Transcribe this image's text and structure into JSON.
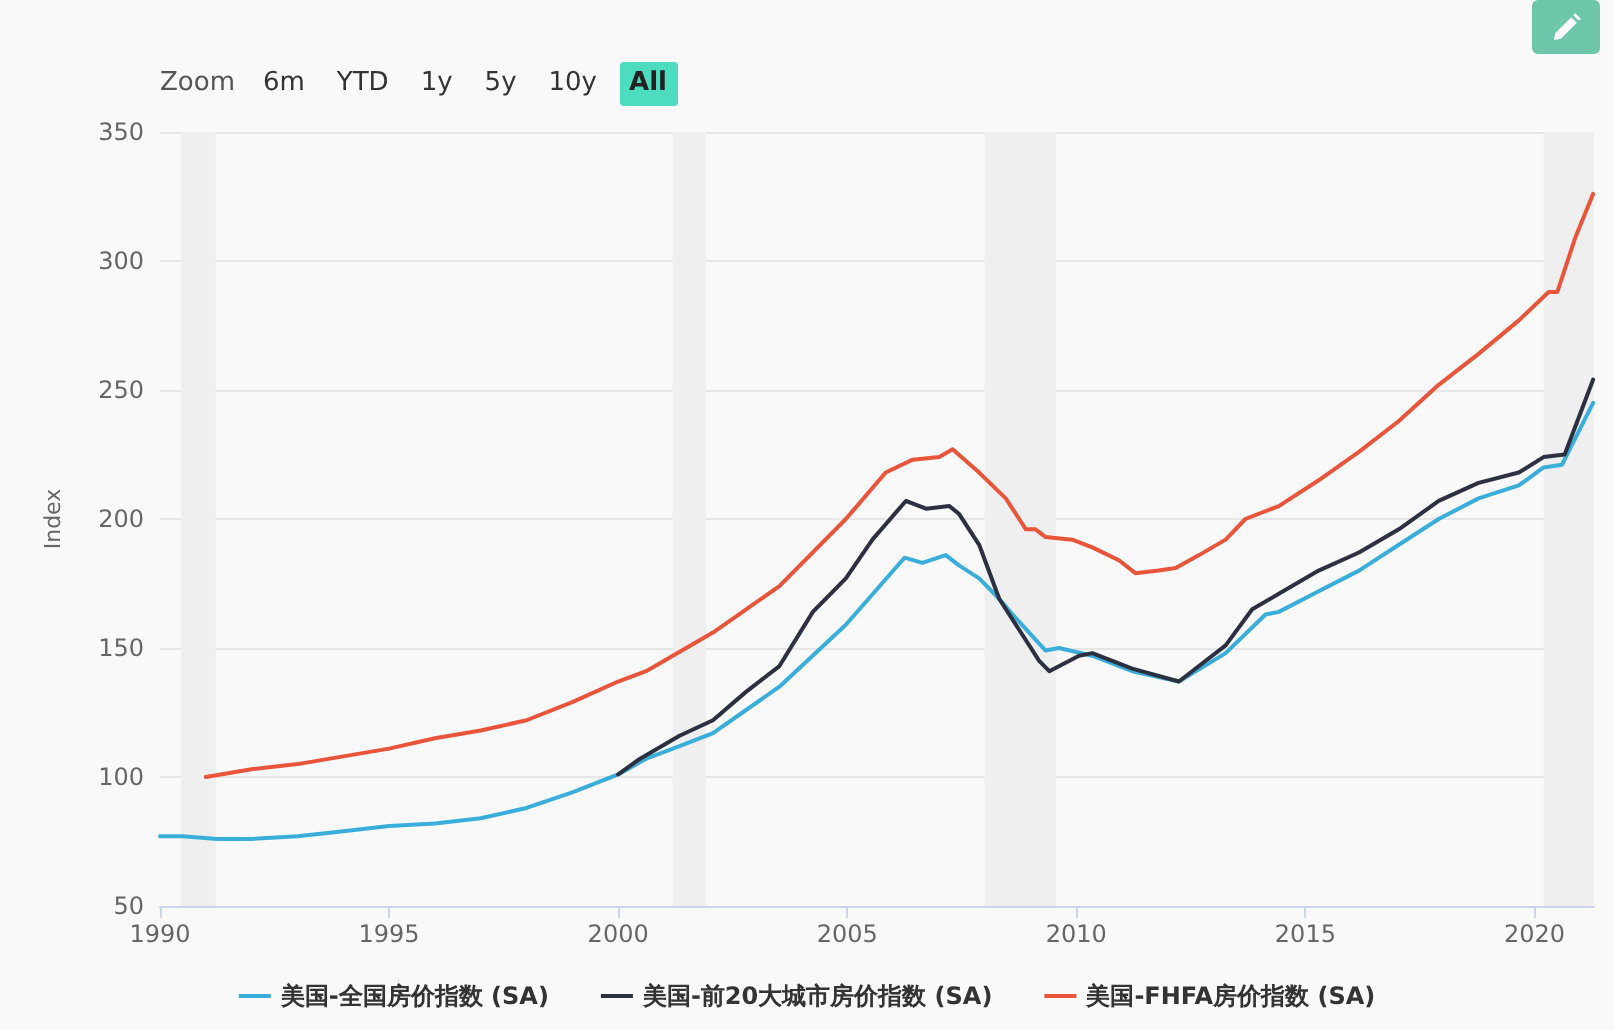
{
  "chart_data": {
    "type": "line",
    "ylabel": "Index",
    "annotations": [
      "Zoom",
      "6m",
      "YTD",
      "1y",
      "5y",
      "10y",
      "All"
    ],
    "series": [
      {
        "name": "美国-全国房价指数 (SA)",
        "color": "#3aaedb",
        "x": [
          1990,
          1990.5,
          1991.25,
          1992,
          1993,
          1994,
          1995,
          1996,
          1997,
          1998,
          1999,
          2000,
          2000.6,
          2001.34,
          2002.07,
          2003.52,
          2004.97,
          2006.25,
          2006.64,
          2007.15,
          2007.44,
          2007.88,
          2008.32,
          2008.61,
          2009.33,
          2009.62,
          2010.35,
          2011.22,
          2012.24,
          2013.26,
          2014.13,
          2014.42,
          2015.29,
          2016.17,
          2017.04,
          2017.91,
          2018.78,
          2019.66,
          2020.2,
          2020.6,
          2021.28
        ],
        "values": [
          77,
          77,
          76,
          76,
          77,
          79,
          81,
          82,
          84,
          88,
          94,
          101,
          107,
          112,
          117,
          135,
          159,
          185,
          183,
          186,
          182,
          177,
          169,
          163,
          149,
          150,
          147,
          141,
          137,
          148,
          163,
          164,
          172,
          180,
          190,
          200,
          208,
          213,
          220,
          221,
          245
        ]
      },
      {
        "name": "美国-前20大城市房价指数 (SA)",
        "color": "#2c3040",
        "x": [
          2000,
          2000.47,
          2001.34,
          2002.07,
          2002.79,
          2003.52,
          2004.25,
          2004.97,
          2005.55,
          2006.28,
          2006.72,
          2007.23,
          2007.44,
          2007.88,
          2008.32,
          2008.61,
          2009.19,
          2009.41,
          2010.06,
          2010.35,
          2011.22,
          2012.24,
          2013.26,
          2013.84,
          2014.42,
          2015.29,
          2016.17,
          2017.04,
          2017.91,
          2018.78,
          2019.66,
          2020.2,
          2020.66,
          2021.28
        ],
        "values": [
          101,
          107,
          116,
          122,
          133,
          143,
          164,
          177,
          192,
          207,
          204,
          205,
          202,
          190,
          169,
          161,
          145,
          141,
          147,
          148,
          142,
          137,
          151,
          165,
          171,
          180,
          187,
          196,
          207,
          214,
          218,
          224,
          225,
          254
        ]
      },
      {
        "name": "美国-FHFA房价指数 (SA)",
        "color": "#e9553b",
        "x": [
          1991,
          1992,
          1993,
          1994,
          1995,
          1996,
          1997,
          1998,
          1999,
          2000,
          2000.61,
          2002.07,
          2003.52,
          2004.97,
          2005.84,
          2006.43,
          2007.01,
          2007.3,
          2007.88,
          2008.46,
          2008.9,
          2009.11,
          2009.33,
          2009.91,
          2010.35,
          2010.93,
          2011.29,
          2011.8,
          2012.17,
          2012.68,
          2013.26,
          2013.69,
          2014.42,
          2015.29,
          2016.17,
          2017.04,
          2017.91,
          2018.78,
          2019.66,
          2020.31,
          2020.5,
          2020.89,
          2021.28
        ],
        "values": [
          100,
          103,
          105,
          108,
          111,
          115,
          118,
          122,
          129,
          137,
          141,
          156,
          174,
          200,
          218,
          223,
          224,
          227,
          218,
          208,
          196,
          196,
          193,
          192,
          189,
          184,
          179,
          180,
          181,
          186,
          192,
          200,
          205,
          215,
          226,
          238,
          252,
          264,
          277,
          288,
          288,
          309,
          326
        ]
      }
    ],
    "bands": [
      {
        "axis": "x",
        "from": 1990.46,
        "to": 1991.22,
        "color": "#efefef"
      },
      {
        "axis": "x",
        "from": 2001.19,
        "to": 2001.92,
        "color": "#efefef"
      },
      {
        "axis": "x",
        "from": 2008.0,
        "to": 2009.55,
        "color": "#efefef"
      },
      {
        "axis": "x",
        "from": 2020.2,
        "to": 2021.3,
        "color": "#efefef"
      }
    ],
    "xlim": [
      1990,
      2021.3
    ],
    "xticks": [
      1990,
      1995,
      2000,
      2005,
      2010,
      2015,
      2020
    ],
    "ylim": [
      50,
      350
    ],
    "yticks": [
      50,
      100,
      150,
      200,
      250,
      300,
      350
    ],
    "grid": "y",
    "legend": "bottom",
    "marker": "none",
    "line_style": "solid"
  }
}
